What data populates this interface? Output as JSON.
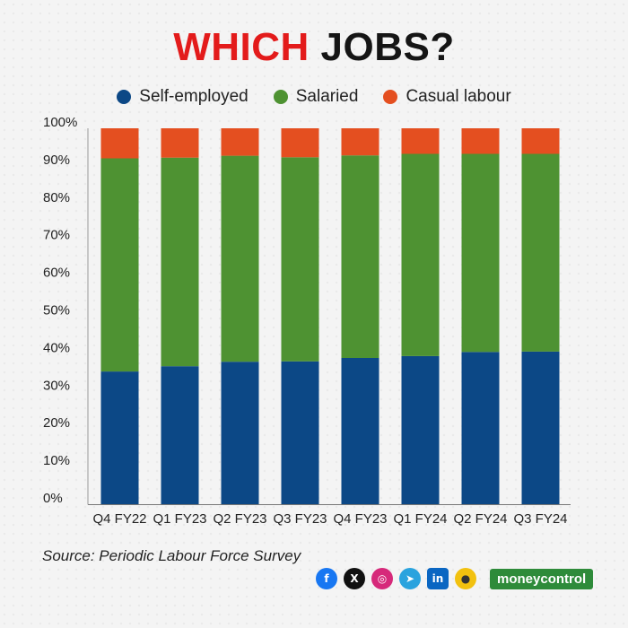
{
  "title": {
    "part1": "WHICH",
    "part2": " JOBS?"
  },
  "source": "Source: Periodic Labour Force Survey",
  "brand": "moneycontrol",
  "colors": {
    "self_employed": "#0c4886",
    "salaried": "#4e9232",
    "casual_labour": "#e44f20",
    "title_red": "#e31b1b"
  },
  "social_icons": [
    "facebook-icon",
    "x-icon",
    "instagram-icon",
    "telegram-icon",
    "linkedin-icon",
    "koo-icon"
  ],
  "chart_data": {
    "type": "bar",
    "stacked": true,
    "title": "WHICH JOBS?",
    "xlabel": "",
    "ylabel": "",
    "ylim": [
      0,
      100
    ],
    "yticks": [
      "0%",
      "10%",
      "20%",
      "30%",
      "40%",
      "50%",
      "60%",
      "70%",
      "80%",
      "90%",
      "100%"
    ],
    "grid": false,
    "legend_position": "top-center",
    "categories": [
      "Q4 FY22",
      "Q1 FY23",
      "Q2 FY23",
      "Q3 FY23",
      "Q4 FY23",
      "Q1 FY24",
      "Q2 FY24",
      "Q3 FY24"
    ],
    "series": [
      {
        "name": "Self-employed",
        "color": "#0c4886",
        "values": [
          35.3,
          36.7,
          37.9,
          38.0,
          38.9,
          39.4,
          40.5,
          40.6
        ]
      },
      {
        "name": "Salaried",
        "color": "#4e9232",
        "values": [
          56.7,
          55.5,
          54.8,
          54.3,
          53.9,
          53.8,
          52.7,
          52.6
        ]
      },
      {
        "name": "Casual labour",
        "color": "#e44f20",
        "values": [
          8.0,
          7.8,
          7.3,
          7.7,
          7.2,
          6.8,
          6.8,
          6.8
        ]
      }
    ]
  }
}
